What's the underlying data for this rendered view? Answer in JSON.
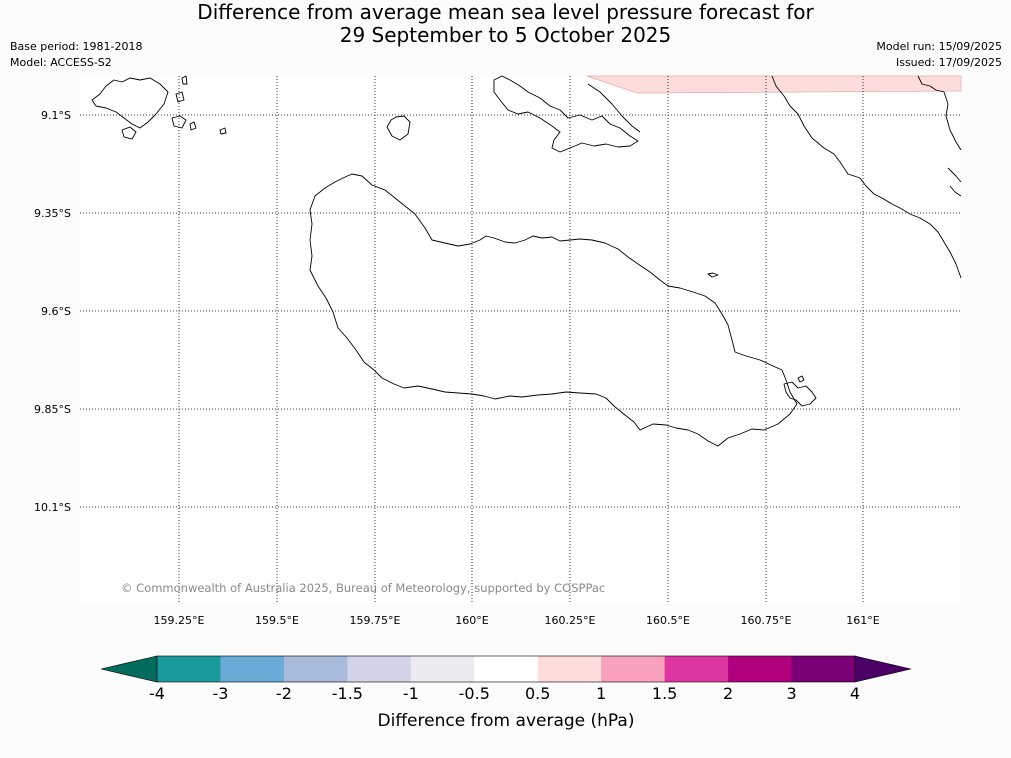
{
  "title": {
    "line1": "Difference from average mean sea level pressure forecast for",
    "line2": "29 September to 5 October 2025"
  },
  "meta": {
    "base_period": "Base period: 1981-2018",
    "model": "Model: ACCESS-S2",
    "model_run": "Model run: 15/09/2025",
    "issued": "Issued: 17/09/2025"
  },
  "map": {
    "lat_labels": [
      "9.1°S",
      "9.35°S",
      "9.6°S",
      "9.85°S",
      "10.1°S"
    ],
    "lon_labels": [
      "159.25°E",
      "159.5°E",
      "159.75°E",
      "160°E",
      "160.25°E",
      "160.5°E",
      "160.75°E",
      "161°E"
    ],
    "copyright": "© Commonwealth of Australia 2025, Bureau of Meteorology, supported by COSPPac",
    "anomaly_fill_color": "#fddcdc"
  },
  "colorbar": {
    "label": "Difference from average (hPa)",
    "ticks": [
      "-4",
      "-3",
      "-2",
      "-1.5",
      "-1",
      "-0.5",
      "0.5",
      "1",
      "1.5",
      "2",
      "3",
      "4"
    ],
    "colors": [
      "#1a9a9c",
      "#6aaad6",
      "#a9bbdd",
      "#d2d4ea",
      "#ecebf0",
      "#ffffff",
      "#fddcdc",
      "#f7a1bc",
      "#de36a1",
      "#b0007e",
      "#7b0078"
    ],
    "under_color": "#046c5e",
    "over_color": "#4a0066"
  }
}
